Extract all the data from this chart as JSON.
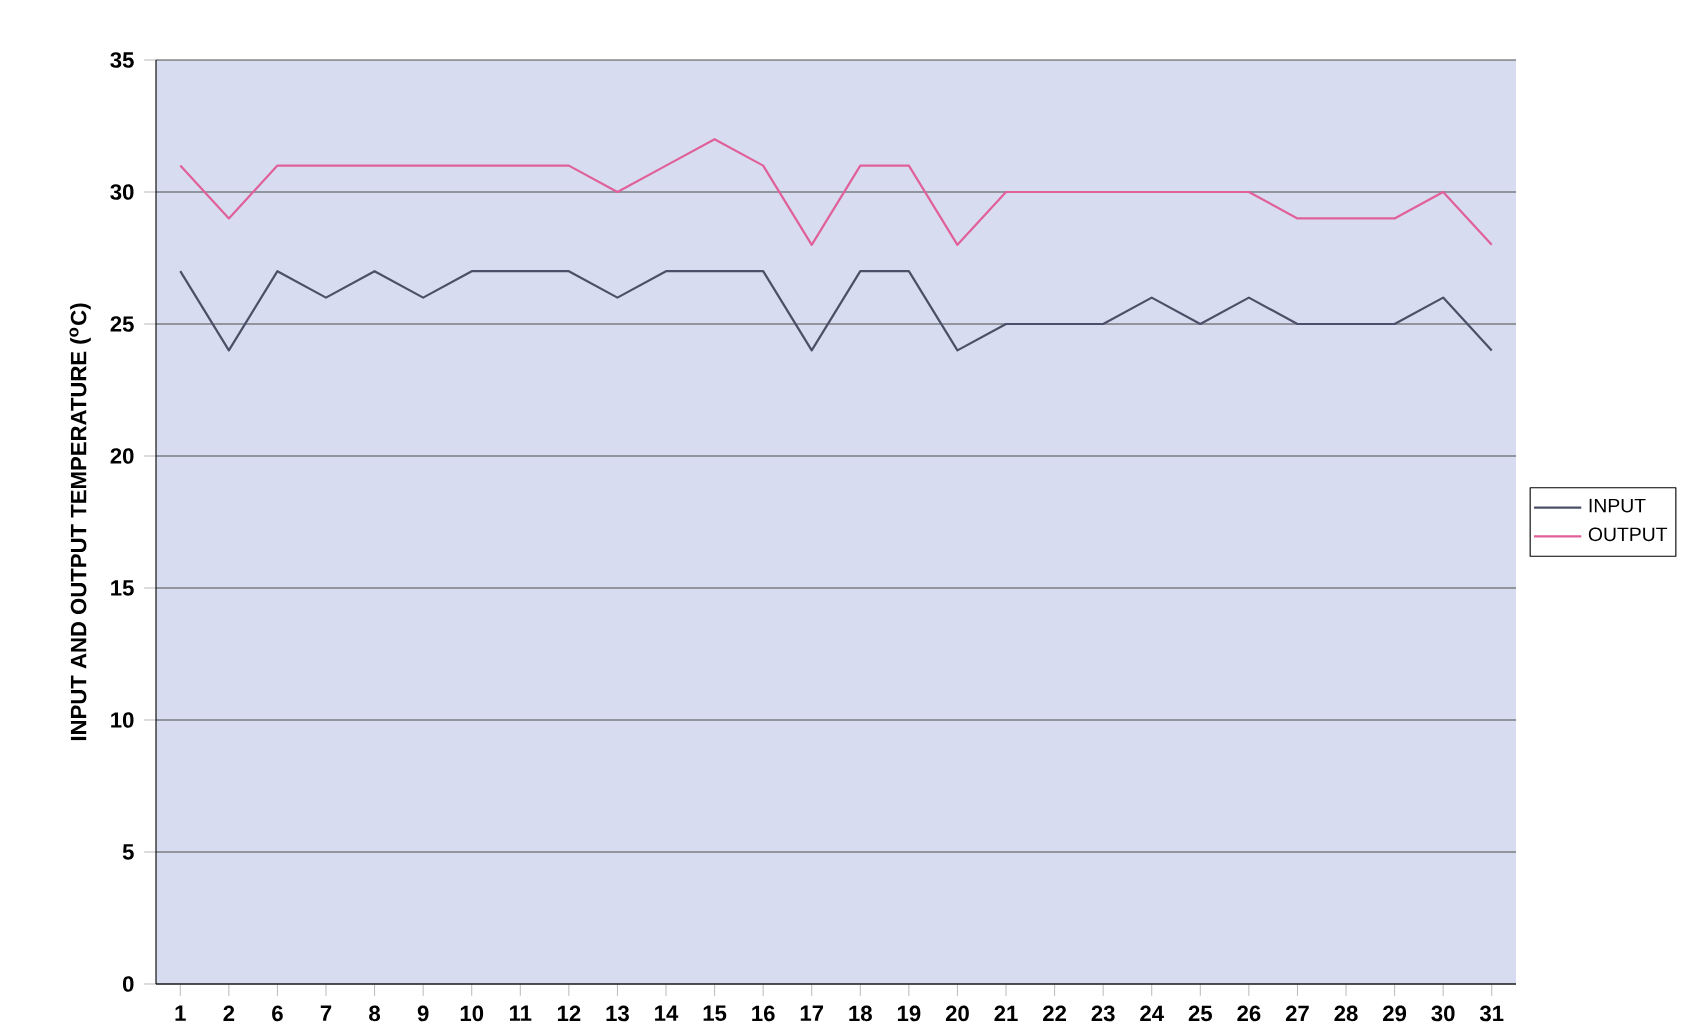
{
  "chart_data": {
    "type": "line",
    "ylabel": "INPUT AND OUTPUT TEMPERATURE ($^{o}$C)",
    "categories": [
      "1",
      "2",
      "6",
      "7",
      "8",
      "9",
      "10",
      "11",
      "12",
      "13",
      "14",
      "15",
      "16",
      "17",
      "18",
      "19",
      "20",
      "21",
      "22",
      "23",
      "24",
      "25",
      "26",
      "27",
      "28",
      "29",
      "30",
      "31"
    ],
    "series": [
      {
        "name": "INPUT",
        "color": "#4a5068",
        "values": [
          27,
          24,
          27,
          26,
          27,
          26,
          27,
          27,
          27,
          26,
          27,
          27,
          27,
          24,
          27,
          27,
          24,
          25,
          25,
          25,
          26,
          25,
          26,
          25,
          25,
          25,
          26,
          24
        ]
      },
      {
        "name": "OUTPUT",
        "color": "#e0609a",
        "values": [
          31,
          29,
          31,
          31,
          31,
          31,
          31,
          31,
          31,
          30,
          31,
          32,
          31,
          28,
          31,
          31,
          28,
          30,
          30,
          30,
          30,
          30,
          30,
          29,
          29,
          29,
          30,
          28
        ]
      }
    ],
    "ylim": [
      0,
      35
    ],
    "yticks": [
      0,
      5,
      10,
      15,
      20,
      25,
      30,
      35
    ],
    "grid": "y",
    "legend": "right",
    "marker": "none",
    "line_style": "solid"
  }
}
